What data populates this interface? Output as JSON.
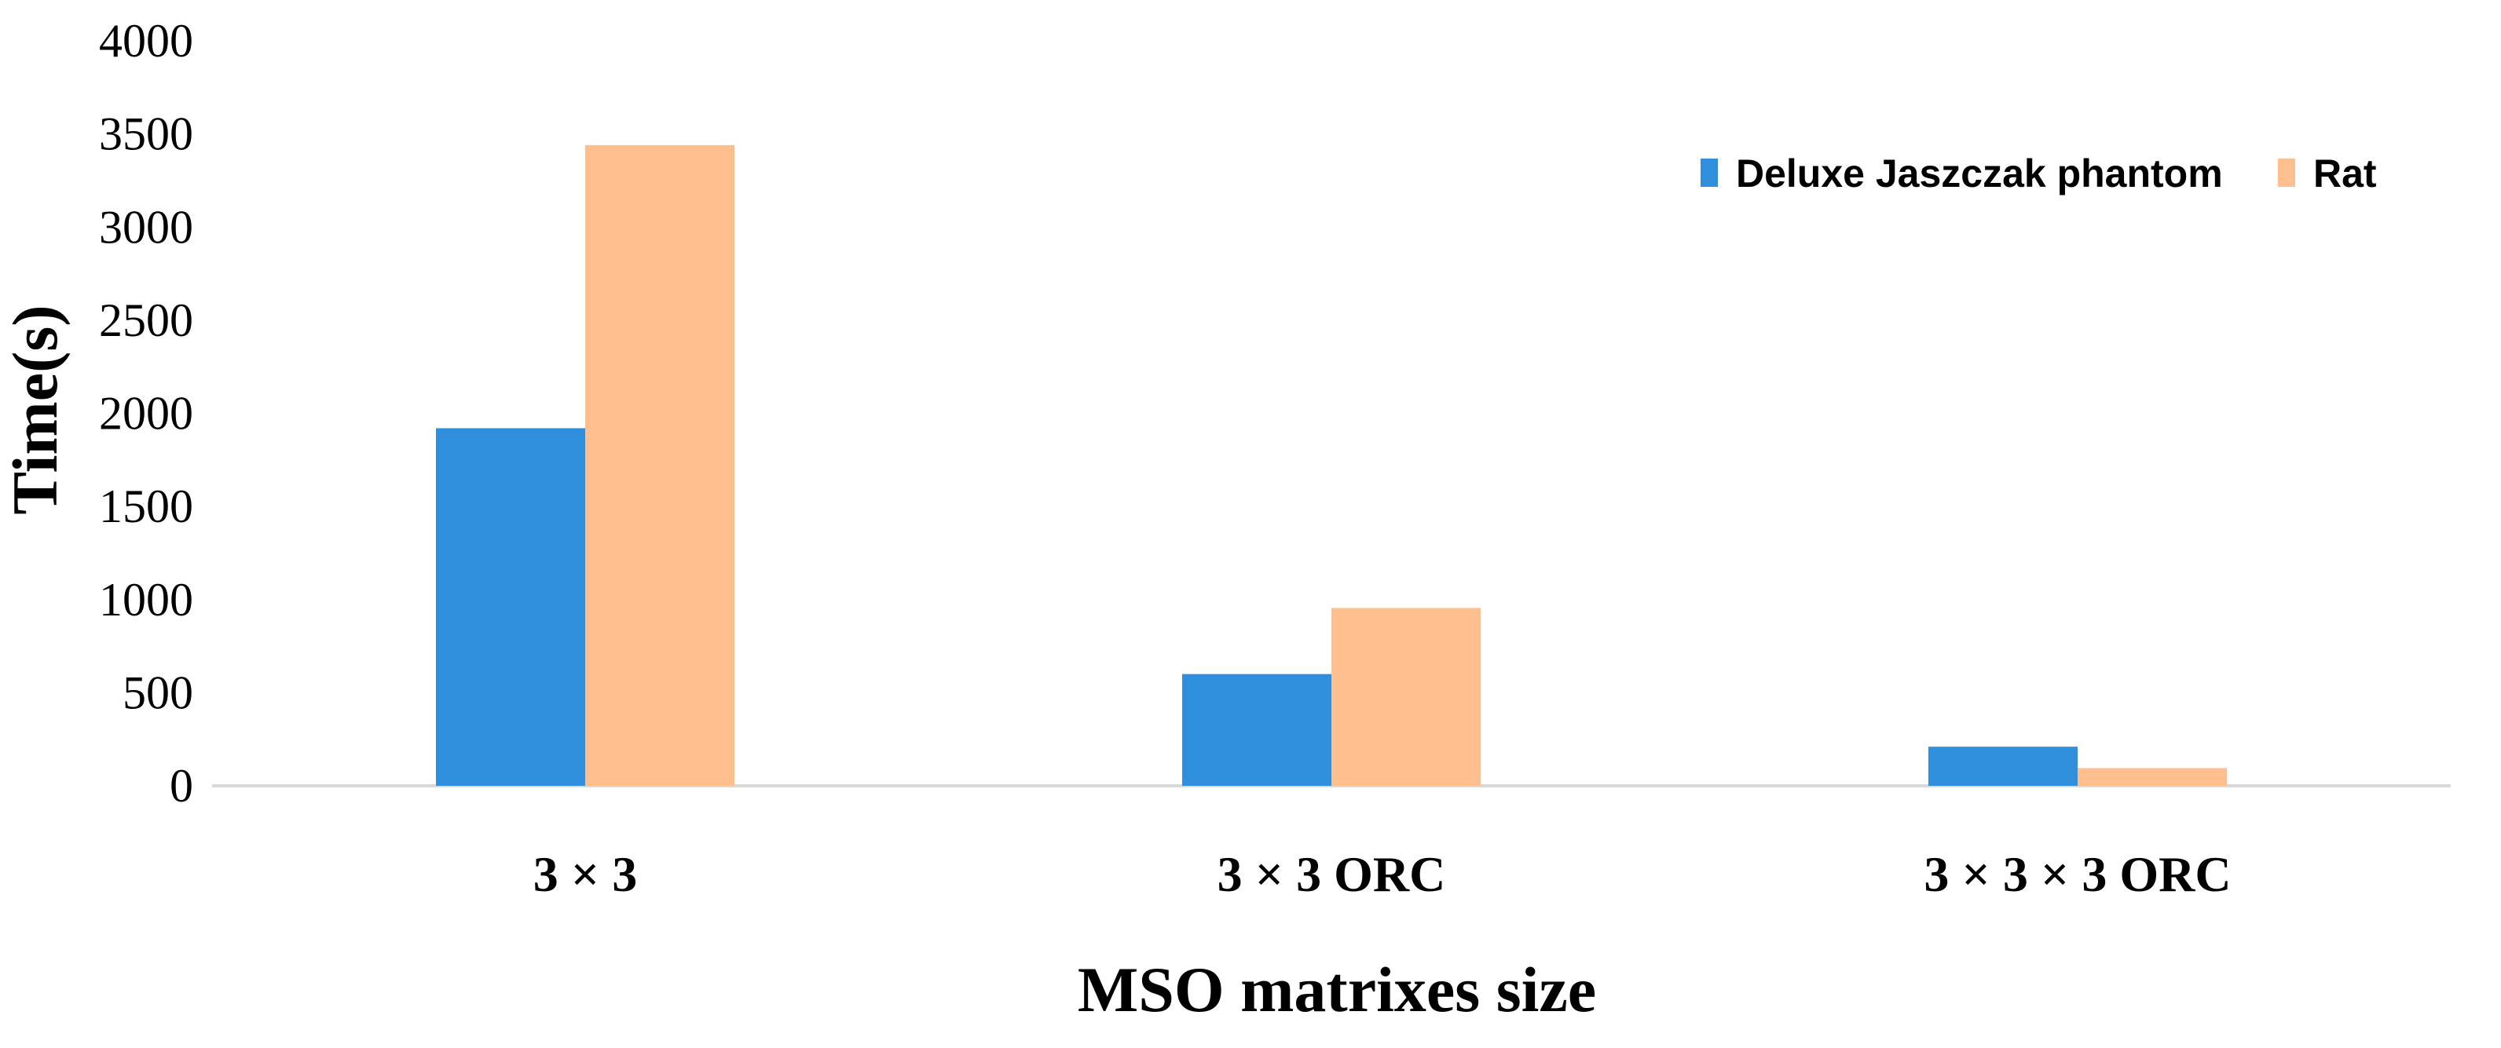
{
  "chart_data": {
    "type": "bar",
    "title": "",
    "xlabel": "MSO matrixes size",
    "ylabel": "Time(s)",
    "ylim": [
      0,
      4000
    ],
    "yticks": [
      0,
      500,
      1000,
      1500,
      2000,
      2500,
      3000,
      3500,
      4000
    ],
    "categories": [
      "3 × 3",
      "3 × 3 ORC",
      "3 × 3 × 3 ORC"
    ],
    "series": [
      {
        "name": "Deluxe Jaszczak phantom",
        "color": "#2F8FDD",
        "values": [
          1920,
          600,
          210
        ]
      },
      {
        "name": "Rat",
        "color": "#FFBE8E",
        "values": [
          3440,
          955,
          95
        ]
      }
    ],
    "legend": "top-right",
    "grid": false
  }
}
